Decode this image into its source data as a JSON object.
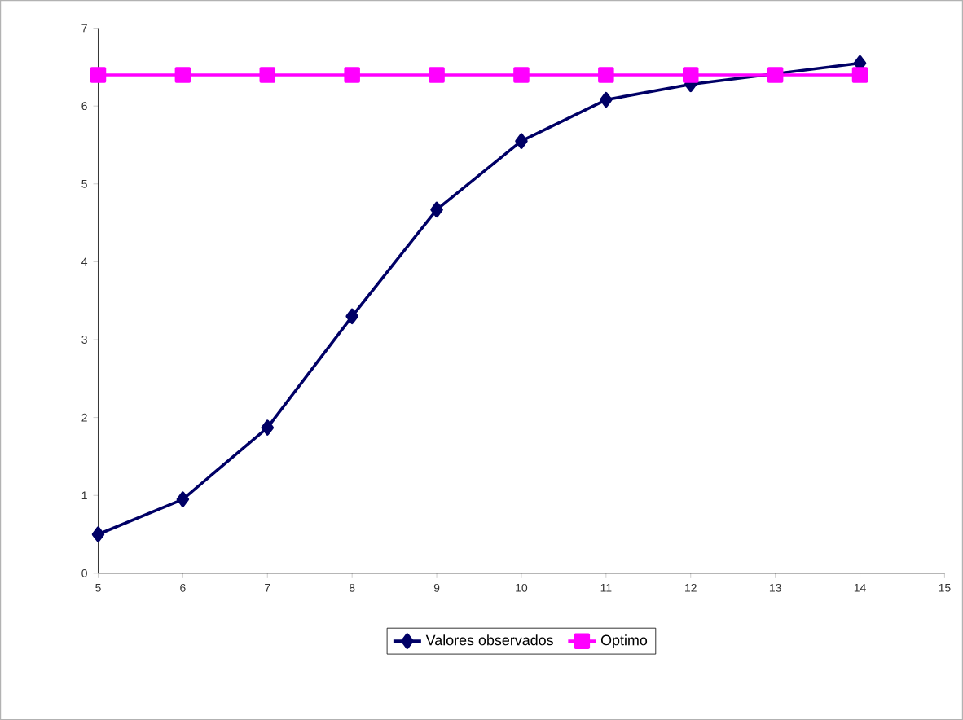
{
  "chart_data": {
    "type": "line",
    "x": [
      5,
      6,
      7,
      8,
      9,
      10,
      11,
      12,
      13,
      14
    ],
    "series": [
      {
        "name": "Valores observados",
        "color": "#000066",
        "marker": "diamond",
        "values": [
          0.5,
          0.95,
          1.87,
          3.3,
          4.67,
          5.55,
          6.08,
          6.28,
          null,
          6.55
        ]
      },
      {
        "name": "Optimo",
        "color": "#ff00ff",
        "marker": "square",
        "values": [
          6.4,
          6.4,
          6.4,
          6.4,
          6.4,
          6.4,
          6.4,
          6.4,
          6.4,
          6.4
        ]
      }
    ],
    "xlim": [
      5,
      15
    ],
    "xticks": [
      5,
      6,
      7,
      8,
      9,
      10,
      11,
      12,
      13,
      14,
      15
    ],
    "ylim": [
      0,
      7
    ],
    "yticks": [
      0,
      1,
      2,
      3,
      4,
      5,
      6,
      7
    ],
    "grid": false,
    "legend": "bottom",
    "line_style": "solid"
  }
}
